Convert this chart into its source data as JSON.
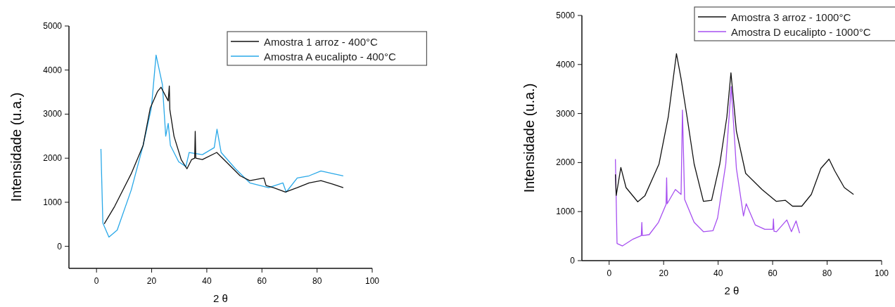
{
  "chart_data": [
    {
      "type": "line",
      "xlabel": "2 θ",
      "ylabel": "Intensidade (u.a.)",
      "xlim": [
        -10,
        100
      ],
      "ylim": [
        -500,
        5000
      ],
      "xticks": [
        0,
        20,
        40,
        60,
        80,
        100
      ],
      "yticks": [
        0,
        1000,
        2000,
        3000,
        4000,
        5000
      ],
      "legend": "top right",
      "series": [
        {
          "name": "Amostra 1 arroz - 400°C",
          "color": "#111111",
          "x": [
            2.8,
            6.6,
            12.6,
            16.9,
            19.5,
            22.1,
            23.4,
            26.0,
            26.4,
            26.6,
            28.1,
            30.7,
            32.8,
            34.5,
            35.6,
            35.8,
            36.0,
            38.4,
            43.6,
            47,
            52.1,
            55.6,
            60.7,
            61.5,
            64.2,
            68.5,
            72.8,
            77.1,
            81.4,
            85.7,
            89.5
          ],
          "values": [
            510,
            910,
            1650,
            2290,
            3140,
            3510,
            3610,
            3300,
            3640,
            3100,
            2500,
            1970,
            1760,
            1970,
            2000,
            2610,
            2000,
            1970,
            2130,
            1920,
            1600,
            1490,
            1550,
            1380,
            1330,
            1230,
            1330,
            1440,
            1490,
            1410,
            1330
          ]
        },
        {
          "name": "Amostra A eucalipto - 400°C",
          "color": "#29a8e8",
          "x": [
            1.6,
            2.3,
            4.5,
            7.5,
            12.6,
            16.9,
            19.9,
            21.6,
            23.9,
            25.1,
            26.0,
            26.8,
            29.8,
            32.4,
            33.6,
            38.4,
            42.7,
            43.7,
            45.2,
            50.4,
            55.6,
            62.4,
            67.6,
            68.8,
            72.8,
            77.1,
            81.4,
            85.7,
            89.5
          ],
          "values": [
            2210,
            530,
            210,
            370,
            1280,
            2290,
            3140,
            4340,
            3670,
            2500,
            2790,
            2290,
            1920,
            1810,
            2130,
            2080,
            2240,
            2660,
            2130,
            1760,
            1440,
            1330,
            1440,
            1230,
            1550,
            1600,
            1710,
            1650,
            1600
          ]
        }
      ]
    },
    {
      "type": "line",
      "xlabel": "2 θ",
      "ylabel": "Intensidade (u.a.)",
      "xlim": [
        -10,
        100
      ],
      "ylim": [
        0,
        5000
      ],
      "xticks": [
        0,
        20,
        40,
        60,
        80,
        100
      ],
      "yticks": [
        0,
        1000,
        2000,
        3000,
        4000,
        5000
      ],
      "legend": "top right",
      "series": [
        {
          "name": "Amostra 3 arroz - 1000°C",
          "color": "#111111",
          "x": [
            2.3,
            2.6,
            4.3,
            6.2,
            10.5,
            13.1,
            18.3,
            21.7,
            24.7,
            26.4,
            28.6,
            31.2,
            34.6,
            37.6,
            40.6,
            43.2,
            44.7,
            46.7,
            50.1,
            56.1,
            61.3,
            64.7,
            67.3,
            70.7,
            74.2,
            77.7,
            80.7,
            82.8,
            86.3,
            89.7
          ],
          "values": [
            1760,
            1330,
            1900,
            1490,
            1200,
            1320,
            1970,
            2930,
            4220,
            3710,
            2930,
            1970,
            1210,
            1230,
            1970,
            2930,
            3830,
            2640,
            1780,
            1450,
            1210,
            1230,
            1110,
            1110,
            1350,
            1880,
            2070,
            1830,
            1490,
            1350
          ]
        },
        {
          "name": "Amostra D eucalipto - 1000°C",
          "color": "#a64ff0",
          "x": [
            2.3,
            2.9,
            4.9,
            8.8,
            11.8,
            12.0,
            12.2,
            14.7,
            18.1,
            20.9,
            21.1,
            21.3,
            24.3,
            26.4,
            26.9,
            27.7,
            31.2,
            34.6,
            38.1,
            39.8,
            42.8,
            44.8,
            46.7,
            49.3,
            50.3,
            53.6,
            57.1,
            60.1,
            60.3,
            60.5,
            61.4,
            65.2,
            66.9,
            68.6,
            69.9
          ],
          "values": [
            2070,
            350,
            300,
            440,
            510,
            780,
            510,
            530,
            780,
            1150,
            1690,
            1160,
            1450,
            1350,
            3070,
            1250,
            780,
            590,
            610,
            870,
            1970,
            3550,
            1880,
            910,
            1160,
            730,
            640,
            640,
            850,
            600,
            590,
            830,
            590,
            810,
            560
          ]
        }
      ]
    }
  ]
}
